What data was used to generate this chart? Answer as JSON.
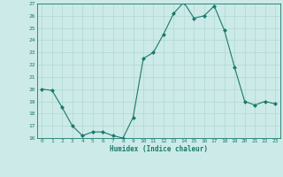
{
  "x": [
    0,
    1,
    2,
    3,
    4,
    5,
    6,
    7,
    8,
    9,
    10,
    11,
    12,
    13,
    14,
    15,
    16,
    17,
    18,
    19,
    20,
    21,
    22,
    23
  ],
  "y": [
    20.0,
    19.9,
    18.5,
    17.0,
    16.2,
    16.5,
    16.5,
    16.2,
    16.0,
    17.7,
    22.5,
    23.0,
    24.5,
    26.2,
    27.1,
    25.8,
    26.0,
    26.8,
    24.8,
    21.8,
    19.0,
    18.7,
    19.0,
    18.8
  ],
  "ylim": [
    16,
    27
  ],
  "yticks": [
    16,
    17,
    18,
    19,
    20,
    21,
    22,
    23,
    24,
    25,
    26,
    27
  ],
  "xlabel": "Humidex (Indice chaleur)",
  "line_color": "#1a7a6e",
  "marker": "D",
  "marker_size": 2.0,
  "bg_color": "#cceae7",
  "grid_color": "#b0d8d4",
  "tick_color": "#1a7a6e",
  "xlabel_color": "#1a7a6e"
}
